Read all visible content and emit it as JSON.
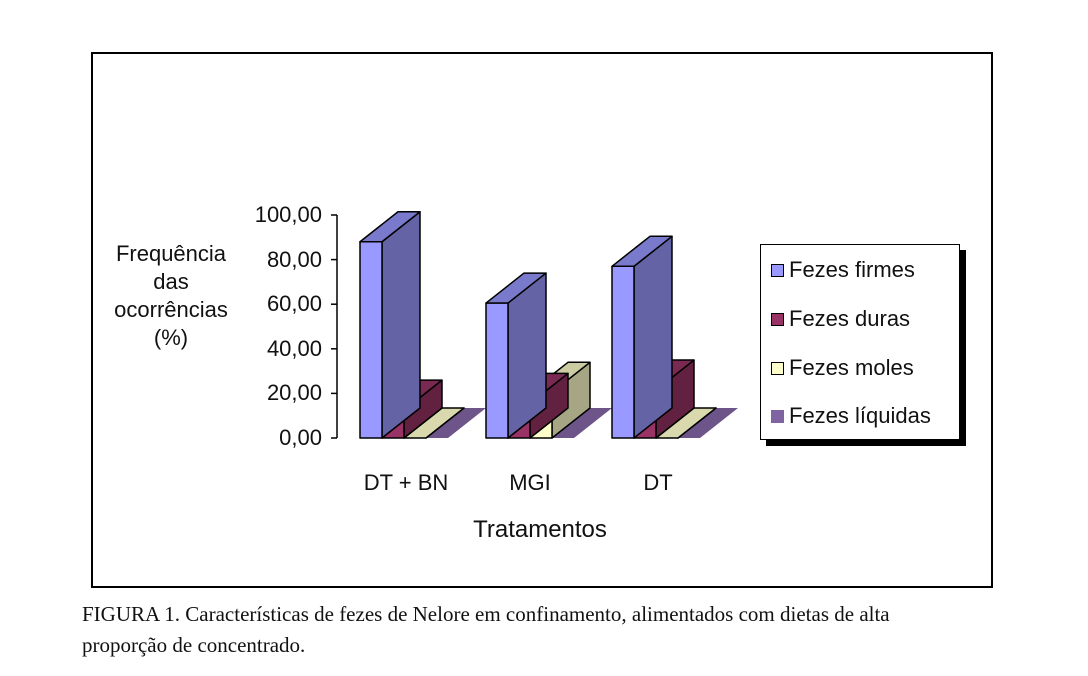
{
  "chart_data": {
    "type": "bar",
    "subtype": "3d-clustered",
    "categories": [
      "DT + BN",
      "MGI",
      "DT"
    ],
    "series": [
      {
        "name": "Fezes firmes",
        "values": [
          88,
          60.5,
          77
        ],
        "color": "#9999ff"
      },
      {
        "name": "Fezes duras",
        "values": [
          12.5,
          15.5,
          21.5
        ],
        "color": "#993366"
      },
      {
        "name": "Fezes moles",
        "values": [
          0,
          20.5,
          0
        ],
        "color": "#ffffcc"
      },
      {
        "name": "Fezes líquidas",
        "values": [
          0,
          0,
          0
        ],
        "color": "#8064a2"
      }
    ],
    "ylabel_lines": [
      "Frequência",
      "das",
      "ocorrências",
      "(%)"
    ],
    "xlabel": "Tratamentos",
    "yticks": [
      "100,00",
      "80,00",
      "60,00",
      "40,00",
      "20,00",
      "0,00"
    ],
    "ylim": [
      0,
      100
    ],
    "legend_position": "right",
    "grid": false
  },
  "caption": {
    "line1": "FIGURA 1. Características de fezes de Nelore em confinamento, alimentados com dietas de alta",
    "line2": "proporção de concentrado."
  }
}
